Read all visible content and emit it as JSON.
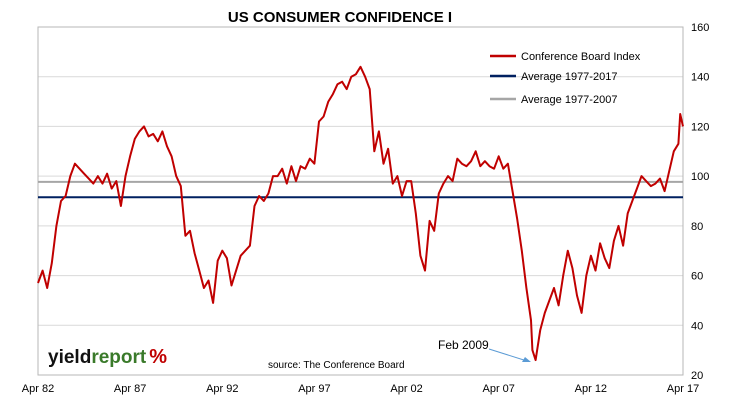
{
  "chart_data": {
    "type": "line",
    "title": "US CONSUMER CONFIDENCE I",
    "xlabel": "",
    "ylabel": "",
    "ylim": [
      20,
      160
    ],
    "yticks": [
      20,
      40,
      60,
      80,
      100,
      120,
      140,
      160
    ],
    "y_axis_position": "right",
    "xlim": [
      1982.25,
      2017.25
    ],
    "xticks": [
      {
        "label": "Apr 82",
        "value": 1982.25
      },
      {
        "label": "Apr 87",
        "value": 1987.25
      },
      {
        "label": "Apr 92",
        "value": 1992.25
      },
      {
        "label": "Apr 97",
        "value": 1997.25
      },
      {
        "label": "Apr 02",
        "value": 2002.25
      },
      {
        "label": "Apr 07",
        "value": 2007.25
      },
      {
        "label": "Apr 12",
        "value": 2012.25
      },
      {
        "label": "Apr 17",
        "value": 2017.25
      }
    ],
    "grid": "horizontal",
    "legend_position": "top-right",
    "series": [
      {
        "name": "Conference Board Index",
        "color": "#c00000",
        "style": "line",
        "x": [
          1982.25,
          1982.5,
          1982.75,
          1983.0,
          1983.25,
          1983.5,
          1983.75,
          1984.0,
          1984.25,
          1984.5,
          1984.75,
          1985.0,
          1985.25,
          1985.5,
          1985.75,
          1986.0,
          1986.25,
          1986.5,
          1986.75,
          1987.0,
          1987.25,
          1987.5,
          1987.75,
          1988.0,
          1988.25,
          1988.5,
          1988.75,
          1989.0,
          1989.25,
          1989.5,
          1989.75,
          1990.0,
          1990.25,
          1990.5,
          1990.75,
          1991.0,
          1991.25,
          1991.5,
          1991.75,
          1992.0,
          1992.25,
          1992.5,
          1992.75,
          1993.0,
          1993.25,
          1993.5,
          1993.75,
          1994.0,
          1994.25,
          1994.5,
          1994.75,
          1995.0,
          1995.25,
          1995.5,
          1995.75,
          1996.0,
          1996.25,
          1996.5,
          1996.75,
          1997.0,
          1997.25,
          1997.5,
          1997.75,
          1998.0,
          1998.25,
          1998.5,
          1998.75,
          1999.0,
          1999.25,
          1999.5,
          1999.75,
          2000.0,
          2000.25,
          2000.5,
          2000.75,
          2001.0,
          2001.25,
          2001.5,
          2001.75,
          2002.0,
          2002.25,
          2002.5,
          2002.75,
          2003.0,
          2003.25,
          2003.5,
          2003.75,
          2004.0,
          2004.25,
          2004.5,
          2004.75,
          2005.0,
          2005.25,
          2005.5,
          2005.75,
          2006.0,
          2006.25,
          2006.5,
          2006.75,
          2007.0,
          2007.25,
          2007.5,
          2007.75,
          2008.0,
          2008.25,
          2008.5,
          2008.75,
          2009.0,
          2009.08,
          2009.25,
          2009.5,
          2009.75,
          2010.0,
          2010.25,
          2010.5,
          2010.75,
          2011.0,
          2011.25,
          2011.5,
          2011.75,
          2012.0,
          2012.25,
          2012.5,
          2012.75,
          2013.0,
          2013.25,
          2013.5,
          2013.75,
          2014.0,
          2014.25,
          2014.5,
          2014.75,
          2015.0,
          2015.25,
          2015.5,
          2015.75,
          2016.0,
          2016.25,
          2016.5,
          2016.75,
          2017.0,
          2017.1,
          2017.25
        ],
        "values": [
          57,
          62,
          55,
          65,
          80,
          90,
          92,
          100,
          105,
          103,
          101,
          99,
          97,
          100,
          97,
          101,
          95,
          98,
          88,
          100,
          108,
          115,
          118,
          120,
          116,
          117,
          114,
          118,
          112,
          108,
          100,
          96,
          76,
          78,
          69,
          62,
          55,
          58,
          49,
          66,
          70,
          67,
          56,
          62,
          68,
          70,
          72,
          88,
          92,
          90,
          93,
          100,
          100,
          103,
          97,
          104,
          98,
          104,
          103,
          107,
          105,
          122,
          124,
          130,
          133,
          137,
          138,
          135,
          140,
          141,
          144,
          140,
          135,
          110,
          118,
          105,
          111,
          97,
          100,
          92,
          98,
          98,
          85,
          68,
          62,
          82,
          78,
          93,
          97,
          100,
          98,
          107,
          105,
          104,
          106,
          110,
          104,
          106,
          104,
          103,
          108,
          103,
          105,
          94,
          83,
          70,
          55,
          42,
          30,
          26,
          38,
          45,
          50,
          55,
          48,
          60,
          70,
          63,
          52,
          45,
          60,
          68,
          62,
          73,
          67,
          63,
          74,
          80,
          72,
          85,
          90,
          95,
          100,
          98,
          96,
          97,
          99,
          94,
          102,
          110,
          113,
          125,
          120
        ]
      },
      {
        "name": "Average 1977-2017",
        "color": "#002060",
        "style": "hline",
        "value": 91.5
      },
      {
        "name": "Average 1977-2007",
        "color": "#a6a6a6",
        "style": "hline",
        "value": 97.7
      }
    ],
    "annotations": [
      {
        "text": "Feb 2009",
        "x": 2009.08,
        "y": 25.3
      },
      {
        "text": "source: The Conference Board"
      }
    ]
  },
  "logo": {
    "part1": "yield",
    "part2": "report",
    "part3": "%"
  }
}
